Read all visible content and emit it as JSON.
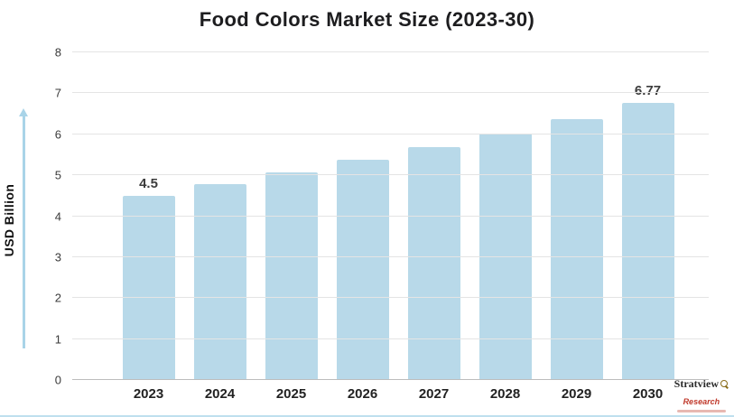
{
  "title": "Food Colors Market Size (2023-30)",
  "chart_data": {
    "type": "bar",
    "title": "Food Colors Market Size (2023-30)",
    "categories": [
      "2023",
      "2024",
      "2025",
      "2026",
      "2027",
      "2028",
      "2029",
      "2030"
    ],
    "values": [
      4.5,
      4.78,
      5.07,
      5.37,
      5.68,
      6.01,
      6.38,
      6.77
    ],
    "point_labels": [
      "4.5",
      "",
      "",
      "",
      "",
      "",
      "",
      "6.77"
    ],
    "xlabel": "",
    "ylabel": "USD Billion",
    "ylim": [
      0,
      8
    ],
    "yticks": [
      0,
      1,
      2,
      3,
      4,
      5,
      6,
      7,
      8
    ],
    "bar_color": "#b8d9e9",
    "grid": true,
    "legend": "none"
  },
  "branding": {
    "name": "Stratview",
    "sub": "Research"
  }
}
